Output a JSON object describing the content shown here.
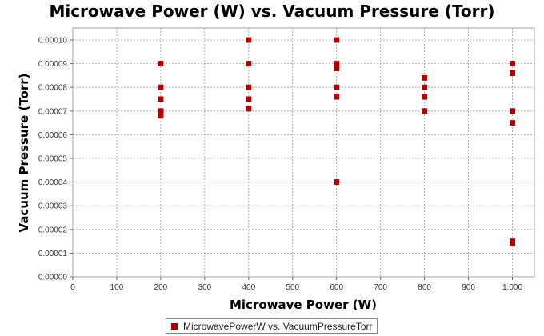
{
  "chart_data": {
    "type": "scatter",
    "title": "Microwave Power (W) vs. Vacuum Pressure (Torr)",
    "xlabel": "Microwave Power (W)",
    "ylabel": "Vacuum Pressure (Torr)",
    "xlim": [
      0,
      1050
    ],
    "ylim": [
      0,
      0.000105
    ],
    "x_ticks": [
      0,
      100,
      200,
      300,
      400,
      500,
      600,
      700,
      800,
      900,
      1000
    ],
    "x_tick_labels": [
      "0",
      "100",
      "200",
      "300",
      "400",
      "500",
      "600",
      "700",
      "800",
      "900",
      "1,000"
    ],
    "y_ticks": [
      0,
      1e-05,
      2e-05,
      3e-05,
      4e-05,
      5e-05,
      6e-05,
      7e-05,
      8e-05,
      9e-05,
      0.0001
    ],
    "y_tick_labels": [
      "0.00000",
      "0.00001",
      "0.00002",
      "0.00003",
      "0.00004",
      "0.00005",
      "0.00006",
      "0.00007",
      "0.00008",
      "0.00009",
      "0.00010"
    ],
    "grid": true,
    "legend_position": "bottom-center",
    "series": [
      {
        "name": "MicrowavePowerW vs. VacuumPressureTorr",
        "color": "#b20000",
        "x": [
          200,
          200,
          200,
          200,
          200,
          200,
          400,
          400,
          400,
          400,
          400,
          600,
          600,
          600,
          600,
          600,
          600,
          600,
          800,
          800,
          800,
          800,
          1000,
          1000,
          1000,
          1000,
          1000,
          1000
        ],
        "y": [
          9e-05,
          8e-05,
          7.5e-05,
          7e-05,
          6.9e-05,
          6.8e-05,
          0.0001,
          9e-05,
          8e-05,
          7.5e-05,
          7.1e-05,
          0.0001,
          9e-05,
          8.9e-05,
          8.8e-05,
          8e-05,
          7.6e-05,
          4e-05,
          8.4e-05,
          8e-05,
          7.6e-05,
          7e-05,
          9e-05,
          8.6e-05,
          7e-05,
          6.5e-05,
          1.5e-05,
          1.4e-05
        ]
      }
    ]
  }
}
